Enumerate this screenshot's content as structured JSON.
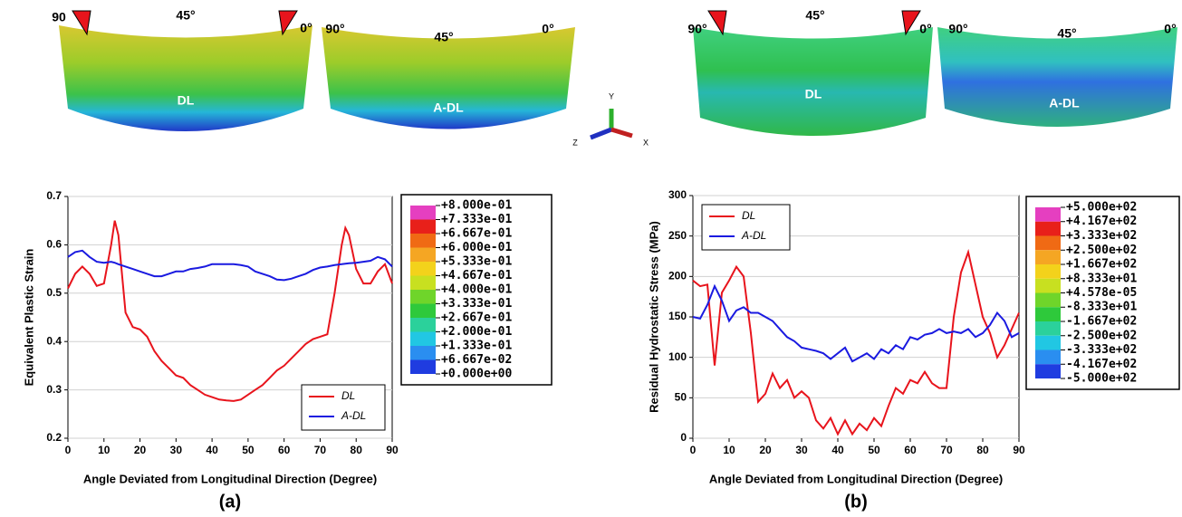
{
  "figure": {
    "renderings": [
      {
        "labels": [
          "90",
          "45°",
          "0°",
          "DL"
        ]
      },
      {
        "labels": [
          "90°",
          "45°",
          "0°",
          "A-DL"
        ]
      },
      {
        "labels": [
          "90°",
          "45°",
          "0°",
          "DL"
        ]
      },
      {
        "labels": [
          "90°",
          "45°",
          "0°",
          "A-DL"
        ]
      }
    ],
    "triad": [
      "Y",
      "Z",
      "X"
    ]
  },
  "chart_data": [
    {
      "type": "line",
      "panel_label": "(a)",
      "xlabel": "Angle Deviated from Longitudinal Direction (Degree)",
      "ylabel": "Equivalent Plastic Strain",
      "x": [
        0,
        2,
        4,
        6,
        8,
        10,
        12,
        13,
        14,
        16,
        18,
        20,
        22,
        24,
        26,
        28,
        30,
        32,
        34,
        36,
        38,
        40,
        42,
        44,
        46,
        48,
        50,
        52,
        54,
        56,
        58,
        60,
        62,
        64,
        66,
        68,
        70,
        72,
        74,
        76,
        77,
        78,
        80,
        82,
        84,
        86,
        88,
        90
      ],
      "series": [
        {
          "name": "DL",
          "color": "#e8141c",
          "values": [
            0.51,
            0.54,
            0.555,
            0.54,
            0.515,
            0.52,
            0.6,
            0.65,
            0.62,
            0.46,
            0.43,
            0.425,
            0.41,
            0.38,
            0.36,
            0.345,
            0.33,
            0.325,
            0.31,
            0.3,
            0.29,
            0.285,
            0.28,
            0.278,
            0.277,
            0.28,
            0.29,
            0.3,
            0.31,
            0.325,
            0.34,
            0.35,
            0.365,
            0.38,
            0.395,
            0.405,
            0.41,
            0.415,
            0.5,
            0.6,
            0.635,
            0.62,
            0.55,
            0.52,
            0.52,
            0.545,
            0.56,
            0.52
          ]
        },
        {
          "name": "A-DL",
          "color": "#1a1ae0",
          "values": [
            0.575,
            0.585,
            0.588,
            0.575,
            0.565,
            0.563,
            0.565,
            0.563,
            0.56,
            0.555,
            0.55,
            0.545,
            0.54,
            0.535,
            0.535,
            0.54,
            0.545,
            0.545,
            0.55,
            0.552,
            0.555,
            0.56,
            0.56,
            0.56,
            0.56,
            0.558,
            0.555,
            0.545,
            0.54,
            0.535,
            0.528,
            0.527,
            0.53,
            0.535,
            0.54,
            0.548,
            0.553,
            0.555,
            0.558,
            0.56,
            0.561,
            0.562,
            0.563,
            0.565,
            0.567,
            0.575,
            0.57,
            0.555
          ]
        }
      ],
      "xlim": [
        0,
        90
      ],
      "xticks": [
        0,
        10,
        20,
        30,
        40,
        50,
        60,
        70,
        80,
        90
      ],
      "ylim": [
        0.2,
        0.7
      ],
      "yticks": [
        0.2,
        0.3,
        0.4,
        0.5,
        0.6,
        0.7
      ],
      "grid": true,
      "legend": "lower right",
      "colorbar": {
        "lim": [
          0,
          0.8
        ],
        "ticks": [
          {
            "value": 0.8,
            "label": "+8.000e-01"
          },
          {
            "value": 0.7333,
            "label": "+7.333e-01"
          },
          {
            "value": 0.6667,
            "label": "+6.667e-01"
          },
          {
            "value": 0.6,
            "label": "+6.000e-01"
          },
          {
            "value": 0.5333,
            "label": "+5.333e-01"
          },
          {
            "value": 0.4667,
            "label": "+4.667e-01"
          },
          {
            "value": 0.4,
            "label": "+4.000e-01"
          },
          {
            "value": 0.3333,
            "label": "+3.333e-01"
          },
          {
            "value": 0.2667,
            "label": "+2.667e-01"
          },
          {
            "value": 0.2,
            "label": "+2.000e-01"
          },
          {
            "value": 0.1333,
            "label": "+1.333e-01"
          },
          {
            "value": 0.06667,
            "label": "+6.667e-02"
          },
          {
            "value": 0,
            "label": "+0.000e+00"
          }
        ],
        "colors": [
          "#e53fc0",
          "#e8201a",
          "#f06a14",
          "#f5a623",
          "#f3d21b",
          "#c8e020",
          "#6fd52a",
          "#2ec93b",
          "#2bd19b",
          "#21c7e3",
          "#2a8ef0",
          "#1f3ce0"
        ]
      }
    },
    {
      "type": "line",
      "panel_label": "(b)",
      "xlabel": "Angle Deviated from Longitudinal Direction (Degree)",
      "ylabel": "Residual Hydrostatic Stress (MPa)",
      "x": [
        0,
        2,
        4,
        6,
        8,
        10,
        12,
        14,
        16,
        18,
        20,
        22,
        24,
        26,
        28,
        30,
        32,
        34,
        36,
        38,
        40,
        42,
        44,
        46,
        48,
        50,
        52,
        54,
        56,
        58,
        60,
        62,
        64,
        66,
        68,
        70,
        72,
        74,
        76,
        78,
        80,
        82,
        84,
        86,
        88,
        90
      ],
      "series": [
        {
          "name": "DL",
          "color": "#e8141c",
          "values": [
            195,
            188,
            190,
            90,
            180,
            195,
            212,
            200,
            130,
            45,
            55,
            80,
            62,
            72,
            50,
            58,
            50,
            22,
            12,
            25,
            5,
            22,
            5,
            18,
            10,
            25,
            15,
            40,
            62,
            55,
            72,
            68,
            82,
            68,
            62,
            62,
            150,
            205,
            230,
            190,
            150,
            130,
            100,
            115,
            135,
            155
          ]
        },
        {
          "name": "A-DL",
          "color": "#1a1ae0",
          "values": [
            150,
            148,
            165,
            188,
            170,
            145,
            158,
            162,
            155,
            155,
            150,
            145,
            135,
            125,
            120,
            112,
            110,
            108,
            105,
            98,
            105,
            112,
            95,
            100,
            105,
            98,
            110,
            105,
            115,
            110,
            125,
            122,
            128,
            130,
            135,
            130,
            132,
            130,
            135,
            125,
            130,
            140,
            155,
            145,
            125,
            130
          ]
        }
      ],
      "xlim": [
        0,
        90
      ],
      "xticks": [
        0,
        10,
        20,
        30,
        40,
        50,
        60,
        70,
        80,
        90
      ],
      "ylim": [
        0,
        300
      ],
      "yticks": [
        0,
        50,
        100,
        150,
        200,
        250,
        300
      ],
      "grid": true,
      "legend": "upper left",
      "colorbar": {
        "lim": [
          -500,
          500
        ],
        "ticks": [
          {
            "value": 500,
            "label": "+5.000e+02"
          },
          {
            "value": 416.7,
            "label": "+4.167e+02"
          },
          {
            "value": 333.3,
            "label": "+3.333e+02"
          },
          {
            "value": 250,
            "label": "+2.500e+02"
          },
          {
            "value": 166.7,
            "label": "+1.667e+02"
          },
          {
            "value": 83.33,
            "label": "+8.333e+01"
          },
          {
            "value": 4.578e-05,
            "label": "+4.578e-05"
          },
          {
            "value": -83.33,
            "label": "-8.333e+01"
          },
          {
            "value": -166.7,
            "label": "-1.667e+02"
          },
          {
            "value": -250,
            "label": "-2.500e+02"
          },
          {
            "value": -333.3,
            "label": "-3.333e+02"
          },
          {
            "value": -416.7,
            "label": "-4.167e+02"
          },
          {
            "value": -500,
            "label": "-5.000e+02"
          }
        ],
        "colors": [
          "#e53fc0",
          "#e8201a",
          "#f06a14",
          "#f5a623",
          "#f3d21b",
          "#c8e020",
          "#6fd52a",
          "#2ec93b",
          "#2bd19b",
          "#21c7e3",
          "#2a8ef0",
          "#1f3ce0"
        ]
      }
    }
  ]
}
